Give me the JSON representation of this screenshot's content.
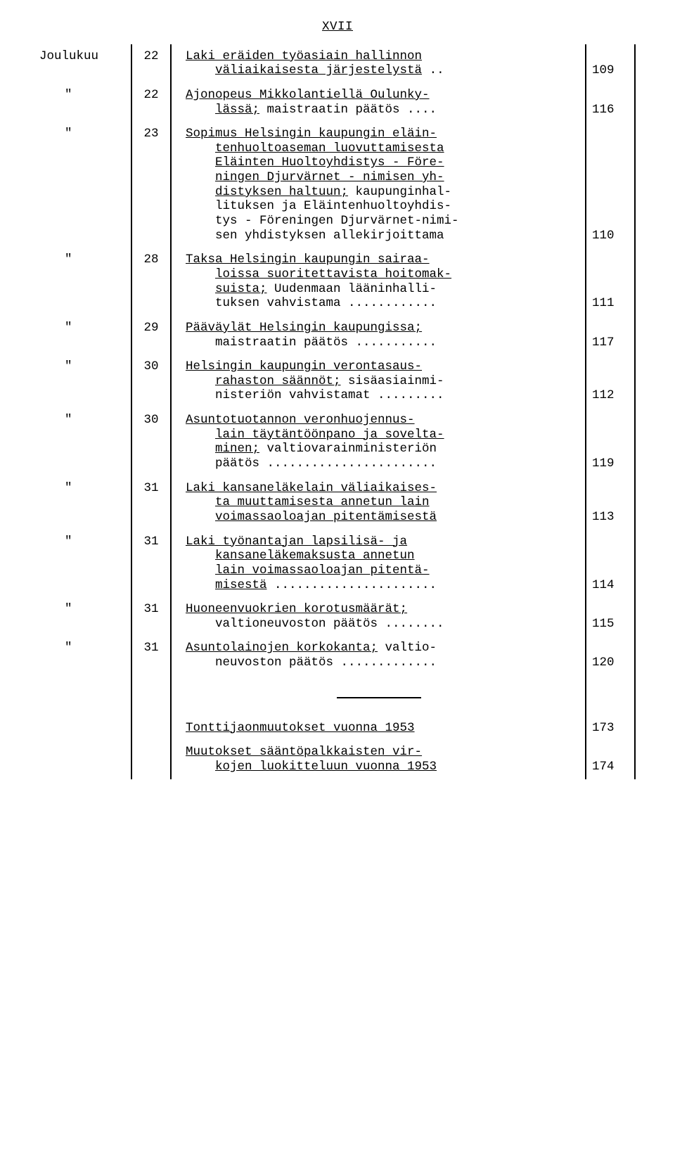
{
  "header": "XVII",
  "month_label": "Joulukuu",
  "ditto": "\"",
  "divider_after_index": 12,
  "entries": [
    {
      "month": "Joulukuu",
      "day": "22",
      "page": "109",
      "lines": [
        {
          "t": "Laki eräiden työasiain hallinnon",
          "u": true
        },
        {
          "t": "väliaikaisesta järjestelystä",
          "u": true,
          "indent": true,
          "dots": " .."
        }
      ]
    },
    {
      "month": "\"",
      "day": "22",
      "page": "116",
      "lines": [
        {
          "t": "Ajonopeus Mikkolantiellä Oulunky-",
          "u": true
        },
        {
          "t": "lässä;",
          "u": true,
          "indent": true,
          "tail": "  maistraatin päätös ...."
        }
      ]
    },
    {
      "month": "\"",
      "day": "23",
      "page": "110",
      "lines": [
        {
          "t": "Sopimus Helsingin kaupungin eläin-",
          "u": true
        },
        {
          "t": "tenhuoltoaseman luovuttamisesta",
          "u": true,
          "indent": true
        },
        {
          "t": "Eläinten Huoltoyhdistys - Före-",
          "u": true,
          "indent": true
        },
        {
          "t": "ningen Djurvärnet - nimisen yh-",
          "u": true,
          "indent": true
        },
        {
          "t": "distyksen haltuun;",
          "u": true,
          "indent": true,
          "tail": " kaupunginhal-"
        },
        {
          "t": "lituksen ja Eläintenhuoltoyhdis-",
          "indent": true
        },
        {
          "t": "tys - Föreningen Djurvärnet-nimi-",
          "indent": true
        },
        {
          "t": "sen yhdistyksen allekirjoittama",
          "indent": true
        }
      ]
    },
    {
      "month": "\"",
      "day": "28",
      "page": "111",
      "lines": [
        {
          "t": "Taksa Helsingin kaupungin sairaa-",
          "u": true
        },
        {
          "t": "loissa suoritettavista hoitomak-",
          "u": true,
          "indent": true
        },
        {
          "t": "suista;",
          "u": true,
          "indent": true,
          "tail": "  Uudenmaan lääninhalli-"
        },
        {
          "t": "tuksen vahvistama ............",
          "indent": true
        }
      ]
    },
    {
      "month": "\"",
      "day": "29",
      "page": "117",
      "lines": [
        {
          "t": "Pääväylät Helsingin kaupungissa;",
          "u": true
        },
        {
          "t": "maistraatin päätös ...........",
          "indent": true
        }
      ]
    },
    {
      "month": "\"",
      "day": "30",
      "page": "112",
      "lines": [
        {
          "t": "Helsingin kaupungin verontasaus-",
          "u": true
        },
        {
          "t": "rahaston säännöt;",
          "u": true,
          "indent": true,
          "tail": " sisäasiainmi-"
        },
        {
          "t": "nisteriön vahvistamat .........",
          "indent": true
        }
      ]
    },
    {
      "month": "\"",
      "day": "30",
      "page": "119",
      "lines": [
        {
          "t": "Asuntotuotannon veronhuojennus-",
          "u": true
        },
        {
          "t": "lain täytäntöönpano ja sovelta-",
          "u": true,
          "indent": true
        },
        {
          "t": "minen;",
          "u": true,
          "indent": true,
          "tail": "  valtiovarainministeriön"
        },
        {
          "t": "päätös .......................",
          "indent": true
        }
      ]
    },
    {
      "month": "\"",
      "day": "31",
      "page": "113",
      "lines": [
        {
          "t": "Laki kansaneläkelain väliaikaises-",
          "u": true
        },
        {
          "t": "ta muuttamisesta annetun lain",
          "u": true,
          "indent": true
        },
        {
          "t": "voimassaoloajan pitentämisestä",
          "u": true,
          "indent": true
        }
      ]
    },
    {
      "month": "\"",
      "day": "31",
      "page": "114",
      "lines": [
        {
          "t": "Laki työnantajan lapsilisä- ja",
          "u": true
        },
        {
          "t": "kansaneläkemaksusta annetun",
          "u": true,
          "indent": true
        },
        {
          "t": "lain voimassaoloajan pitentä-",
          "u": true,
          "indent": true
        },
        {
          "t": "misestä",
          "u": true,
          "indent": true,
          "tail": " ......................"
        }
      ]
    },
    {
      "month": "\"",
      "day": "31",
      "page": "115",
      "lines": [
        {
          "t": "Huoneenvuokrien korotusmäärät;",
          "u": true
        },
        {
          "t": "valtioneuvoston päätös ........",
          "indent": true
        }
      ]
    },
    {
      "month": "\"",
      "day": "31",
      "page": "120",
      "lines": [
        {
          "t": "Asuntolainojen korkokanta;",
          "u": true,
          "tail": " valtio-"
        },
        {
          "t": "neuvoston päätös .............",
          "indent": true
        }
      ]
    },
    {
      "month": "",
      "day": "",
      "page": "173",
      "lines": [
        {
          "t": "Tonttijaonmuutokset vuonna 1953",
          "u": true
        }
      ]
    },
    {
      "month": "",
      "day": "",
      "page": "174",
      "lines": [
        {
          "t": "Muutokset sääntöpalkkaisten vir-",
          "u": true
        },
        {
          "t": "kojen luokitteluun vuonna 1953",
          "u": true,
          "indent": true
        }
      ]
    }
  ]
}
